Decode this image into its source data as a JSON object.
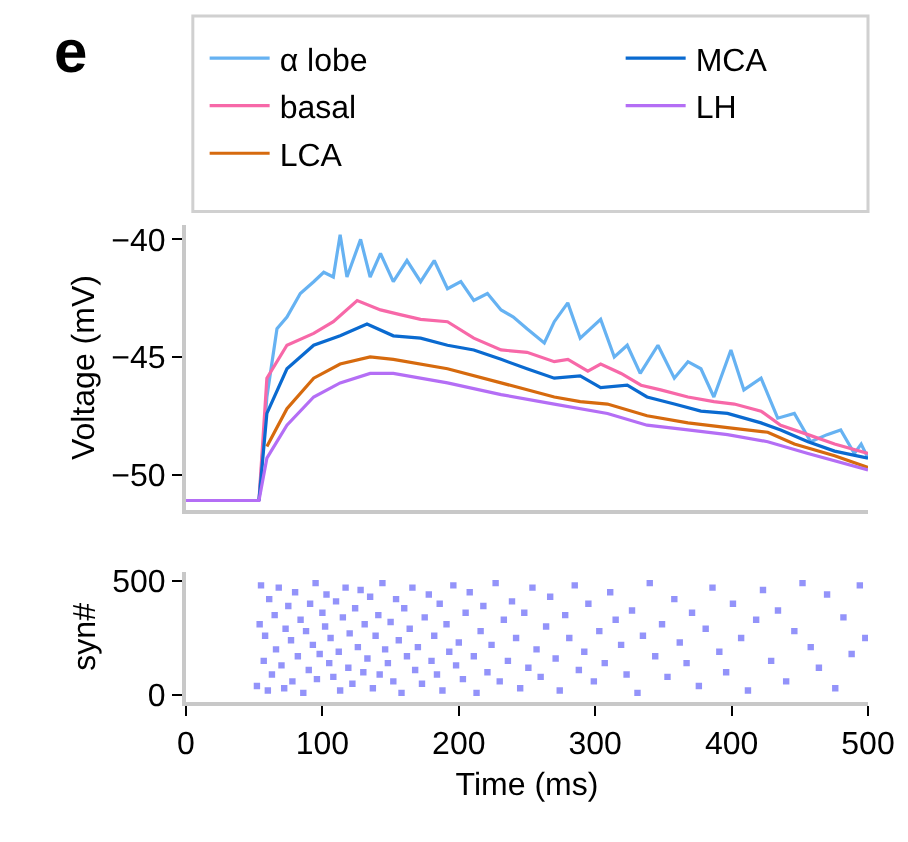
{
  "chart_data": [
    {
      "type": "line",
      "title": "e",
      "ylabel": "Voltage (mV)",
      "xlim": [
        0,
        500
      ],
      "ylim": [
        -51.5,
        -39.4
      ],
      "yticks": [
        {
          "value": -50,
          "label": "−50"
        },
        {
          "value": -45,
          "label": "−45"
        },
        {
          "value": -40,
          "label": "−40"
        }
      ],
      "tick_labels": "y",
      "legend": "top",
      "series": [
        {
          "name": "α lobe",
          "color": "#66b2f2",
          "x": [
            53.5,
            59.3,
            66.7,
            74,
            83.8,
            93.6,
            101,
            108,
            113,
            118,
            128,
            135,
            142.6,
            152,
            162,
            172,
            182,
            191.7,
            201.5,
            211,
            221,
            231,
            240,
            250,
            262.7,
            270,
            279.9,
            289,
            304,
            314,
            323.5,
            333,
            346,
            358,
            368,
            377.5,
            387,
            399.5,
            409,
            421.6,
            433.8,
            446,
            458,
            470,
            480,
            490,
            495,
            500
          ],
          "values": [
            -51.1,
            -46.7,
            -43.8,
            -43.3,
            -42.3,
            -41.8,
            -41.4,
            -41.6,
            -39.8,
            -41.6,
            -40.0,
            -41.6,
            -40.6,
            -41.8,
            -40.9,
            -41.8,
            -40.9,
            -42.1,
            -41.8,
            -42.6,
            -42.3,
            -43.0,
            -43.3,
            -43.8,
            -44.4,
            -43.5,
            -42.7,
            -44.2,
            -43.4,
            -45.0,
            -44.5,
            -45.7,
            -44.5,
            -45.9,
            -45.2,
            -45.5,
            -46.7,
            -44.7,
            -46.4,
            -45.9,
            -47.6,
            -47.4,
            -48.6,
            -48.3,
            -48.1,
            -49.1,
            -48.7,
            -49.3
          ]
        },
        {
          "name": "basal",
          "color": "#f768a8",
          "x": [
            53.5,
            59.3,
            74,
            93.6,
            108,
            125.5,
            142.6,
            157,
            172,
            191.7,
            211,
            231,
            250,
            270,
            280,
            294.6,
            304,
            319,
            333.6,
            348,
            368,
            387,
            402,
            421.6,
            436,
            456,
            475.5,
            500
          ],
          "values": [
            -51.1,
            -45.9,
            -44.5,
            -44.0,
            -43.5,
            -42.6,
            -43.0,
            -43.2,
            -43.4,
            -43.5,
            -44.2,
            -44.7,
            -44.8,
            -45.2,
            -45.1,
            -45.6,
            -45.3,
            -45.7,
            -46.2,
            -46.4,
            -46.7,
            -46.9,
            -47.0,
            -47.3,
            -47.9,
            -48.3,
            -48.7,
            -49.1
          ]
        },
        {
          "name": "LCA",
          "color": "#d66a0e",
          "x": [
            59.3,
            74,
            93.6,
            113,
            135,
            152,
            191.7,
            231,
            270,
            289,
            309,
            338,
            368,
            397,
            426.5,
            446,
            475.5,
            500
          ],
          "values": [
            -48.8,
            -47.2,
            -45.9,
            -45.3,
            -45.0,
            -45.1,
            -45.5,
            -46.1,
            -46.7,
            -46.9,
            -47.0,
            -47.5,
            -47.8,
            -48.0,
            -48.2,
            -48.7,
            -49.2,
            -49.7
          ]
        },
        {
          "name": "MCA",
          "color": "#0a6ad0",
          "x": [
            53.5,
            59.3,
            74,
            93.6,
            113,
            132.7,
            152,
            172,
            191.7,
            211,
            231,
            250,
            270,
            289,
            304,
            323.5,
            338,
            358,
            377.5,
            397,
            421.6,
            436,
            456,
            475.5,
            500
          ],
          "values": [
            -51.1,
            -47.4,
            -45.5,
            -44.5,
            -44.1,
            -43.6,
            -44.1,
            -44.2,
            -44.5,
            -44.7,
            -45.1,
            -45.5,
            -45.9,
            -45.8,
            -46.3,
            -46.2,
            -46.7,
            -47.0,
            -47.3,
            -47.4,
            -47.8,
            -48.1,
            -48.6,
            -49.0,
            -49.3
          ]
        },
        {
          "name": "LH",
          "color": "#b46ef5",
          "x": [
            0,
            50,
            53.5,
            59.3,
            74,
            93.6,
            113,
            135,
            152,
            191.7,
            231,
            270,
            309,
            338,
            368,
            397,
            426.5,
            456,
            500
          ],
          "values": [
            -51.1,
            -51.1,
            -51.1,
            -49.3,
            -47.9,
            -46.7,
            -46.1,
            -45.7,
            -45.7,
            -46.1,
            -46.6,
            -47.0,
            -47.4,
            -47.9,
            -48.1,
            -48.3,
            -48.6,
            -49.1,
            -49.8
          ]
        }
      ]
    },
    {
      "type": "scatter",
      "xlabel": "Time (ms)",
      "ylabel": "syn#",
      "xlim": [
        0,
        500
      ],
      "ylim": [
        -30,
        540
      ],
      "xticks": [
        0,
        100,
        200,
        300,
        400,
        500
      ],
      "yticks": [
        0,
        500
      ],
      "marker": "square",
      "series": [
        {
          "color": "#3b3bf5",
          "x": [
            52,
            54,
            55,
            57,
            58,
            60,
            61,
            63,
            65,
            66,
            68,
            70,
            72,
            73,
            75,
            77,
            78,
            80,
            82,
            84,
            86,
            88,
            90,
            91,
            93,
            95,
            96,
            98,
            100,
            102,
            103,
            105,
            106,
            108,
            110,
            112,
            113,
            115,
            117,
            119,
            120,
            122,
            124,
            126,
            128,
            130,
            131,
            133,
            135,
            137,
            139,
            141,
            142,
            144,
            146,
            148,
            150,
            152,
            154,
            156,
            158,
            160,
            162,
            164,
            166,
            168,
            170,
            173,
            175,
            178,
            180,
            182,
            184,
            186,
            188,
            191,
            193,
            196,
            198,
            200,
            203,
            205,
            208,
            211,
            213,
            216,
            218,
            221,
            224,
            227,
            230,
            233,
            236,
            239,
            242,
            245,
            248,
            251,
            254,
            257,
            260,
            264,
            267,
            271,
            274,
            278,
            281,
            285,
            288,
            292,
            295,
            299,
            303,
            307,
            311,
            315,
            319,
            323,
            327,
            331,
            335,
            340,
            344,
            349,
            353,
            358,
            362,
            367,
            371,
            376,
            381,
            386,
            391,
            396,
            401,
            407,
            412,
            418,
            423,
            429,
            434,
            440,
            446,
            452,
            458,
            464,
            470,
            476,
            482,
            488,
            494,
            498
          ],
          "values": [
            40,
            310,
            480,
            150,
            260,
            20,
            420,
            90,
            350,
            200,
            470,
            130,
            30,
            290,
            390,
            240,
            60,
            450,
            170,
            330,
            10,
            280,
            110,
            400,
            220,
            490,
            70,
            180,
            360,
            300,
            440,
            140,
            250,
            80,
            410,
            190,
            20,
            340,
            470,
            120,
            270,
            50,
            380,
            210,
            460,
            100,
            310,
            160,
            430,
            30,
            260,
            350,
            90,
            490,
            200,
            140,
            320,
            60,
            420,
            240,
            10,
            380,
            170,
            290,
            470,
            110,
            210,
            50,
            340,
            440,
            150,
            260,
            90,
            400,
            20,
            310,
            190,
            480,
            130,
            230,
            70,
            360,
            450,
            170,
            10,
            280,
            390,
            100,
            220,
            490,
            60,
            330,
            150,
            410,
            250,
            30,
            360,
            120,
            470,
            200,
            80,
            300,
            430,
            160,
            20,
            350,
            250,
            480,
            110,
            190,
            400,
            60,
            280,
            140,
            450,
            330,
            220,
            90,
            370,
            10,
            260,
            490,
            170,
            310,
            80,
            420,
            230,
            140,
            360,
            40,
            290,
            470,
            190,
            100,
            400,
            250,
            20,
            330,
            460,
            150,
            370,
            60,
            280,
            490,
            210,
            120,
            440,
            30,
            340,
            180,
            480,
            250
          ]
        }
      ]
    }
  ]
}
